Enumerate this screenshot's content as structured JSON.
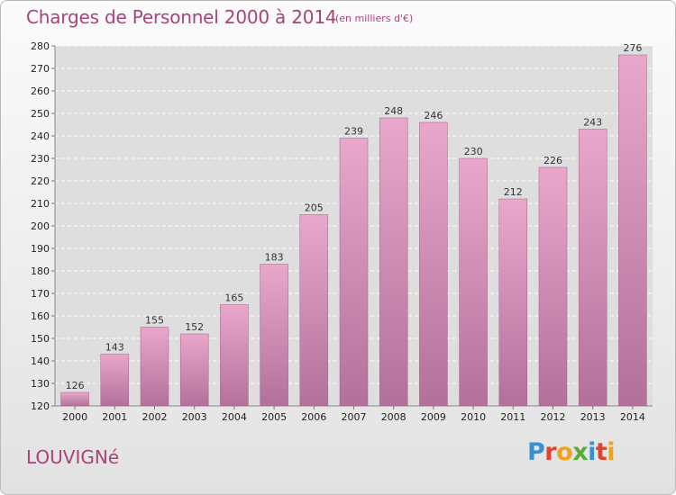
{
  "title": "Charges de Personnel 2000 à 2014",
  "unit_note": "(en milliers d'€)",
  "place": "LOUVIGNé",
  "logo": {
    "letters": [
      "P",
      "r",
      "o",
      "x",
      "i",
      "t",
      "i"
    ],
    "colors": [
      "#3a8fd1",
      "#e0422a",
      "#f0a21b",
      "#5aab3b",
      "#3a8fd1",
      "#e0422a",
      "#f0a21b"
    ]
  },
  "colors": {
    "title": "#a8447a",
    "bar_top": "#e9a7cb",
    "bar_bottom": "#b1719a"
  },
  "chart_data": {
    "type": "bar",
    "title": "Charges de Personnel 2000 à 2014",
    "categories": [
      "2000",
      "2001",
      "2002",
      "2003",
      "2004",
      "2005",
      "2006",
      "2007",
      "2008",
      "2009",
      "2010",
      "2011",
      "2012",
      "2013",
      "2014"
    ],
    "values": [
      126,
      143,
      155,
      152,
      165,
      183,
      205,
      239,
      248,
      246,
      230,
      212,
      226,
      243,
      276
    ],
    "ylim": [
      120,
      280
    ],
    "yticks": [
      120,
      130,
      140,
      150,
      160,
      170,
      180,
      190,
      200,
      210,
      220,
      230,
      240,
      250,
      260,
      270,
      280
    ],
    "grid": true,
    "xlabel": "",
    "ylabel": ""
  }
}
